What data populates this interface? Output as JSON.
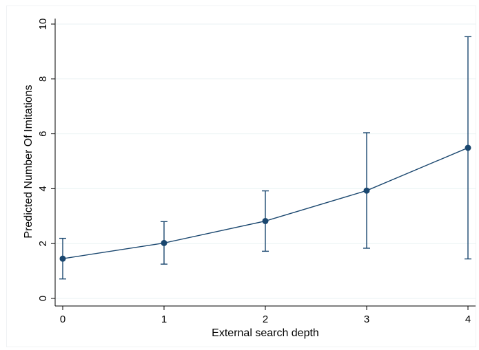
{
  "chart_data": {
    "type": "line",
    "title": "",
    "xlabel": "External search depth",
    "ylabel": "Predicted Number Of Imitations",
    "x": [
      0,
      1,
      2,
      3,
      4
    ],
    "x_ticks": [
      "0",
      "1",
      "2",
      "3",
      "4"
    ],
    "y_ticks": [
      "0",
      "2",
      "4",
      "6",
      "8",
      "10"
    ],
    "xlim": [
      -0.1,
      4.1
    ],
    "ylim": [
      0,
      10
    ],
    "grid": true,
    "series": [
      {
        "values": [
          1.45,
          2.02,
          2.82,
          3.93,
          5.49
        ],
        "ci_lower": [
          0.71,
          1.25,
          1.72,
          1.83,
          1.44
        ],
        "ci_upper": [
          2.19,
          2.8,
          3.92,
          6.04,
          9.54
        ],
        "color": "#1a476f"
      }
    ],
    "grid_color": "#eaf2f3",
    "axis_color": "#000000"
  }
}
